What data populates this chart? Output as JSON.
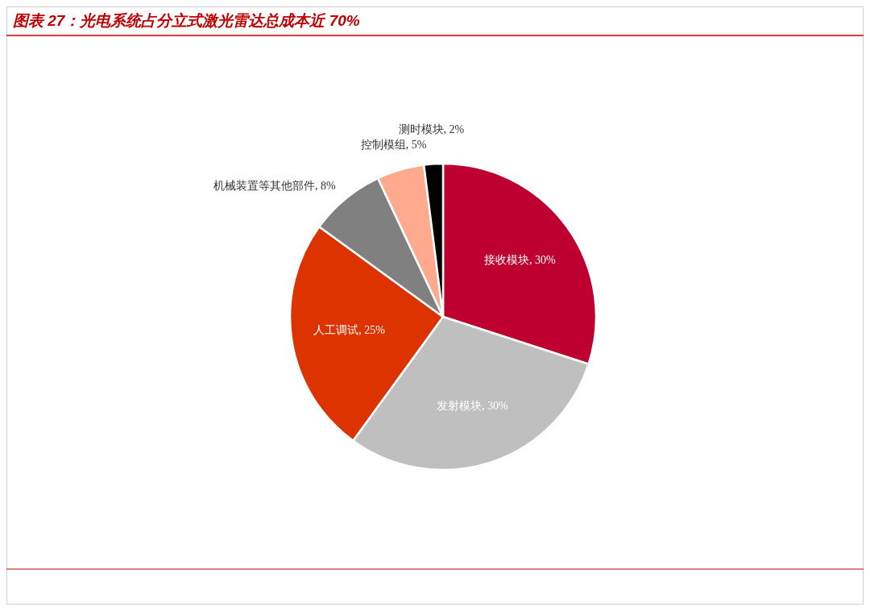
{
  "chart_data": {
    "type": "pie",
    "title": "图表 27：光电系统占分立式激光雷达总成本近 70%",
    "categories": [
      "接收模块",
      "发射模块",
      "人工调试",
      "机械装置等其他部件",
      "控制模组",
      "测时模块"
    ],
    "values": [
      30,
      30,
      25,
      8,
      5,
      2
    ],
    "colors": [
      "#be0030",
      "#bfbfbf",
      "#dc3300",
      "#808080",
      "#ffa98f",
      "#000000"
    ],
    "value_labels": [
      ", 30%",
      ", 30%",
      ", 25%",
      ", 8%",
      ", 5%",
      ", 2%"
    ]
  }
}
